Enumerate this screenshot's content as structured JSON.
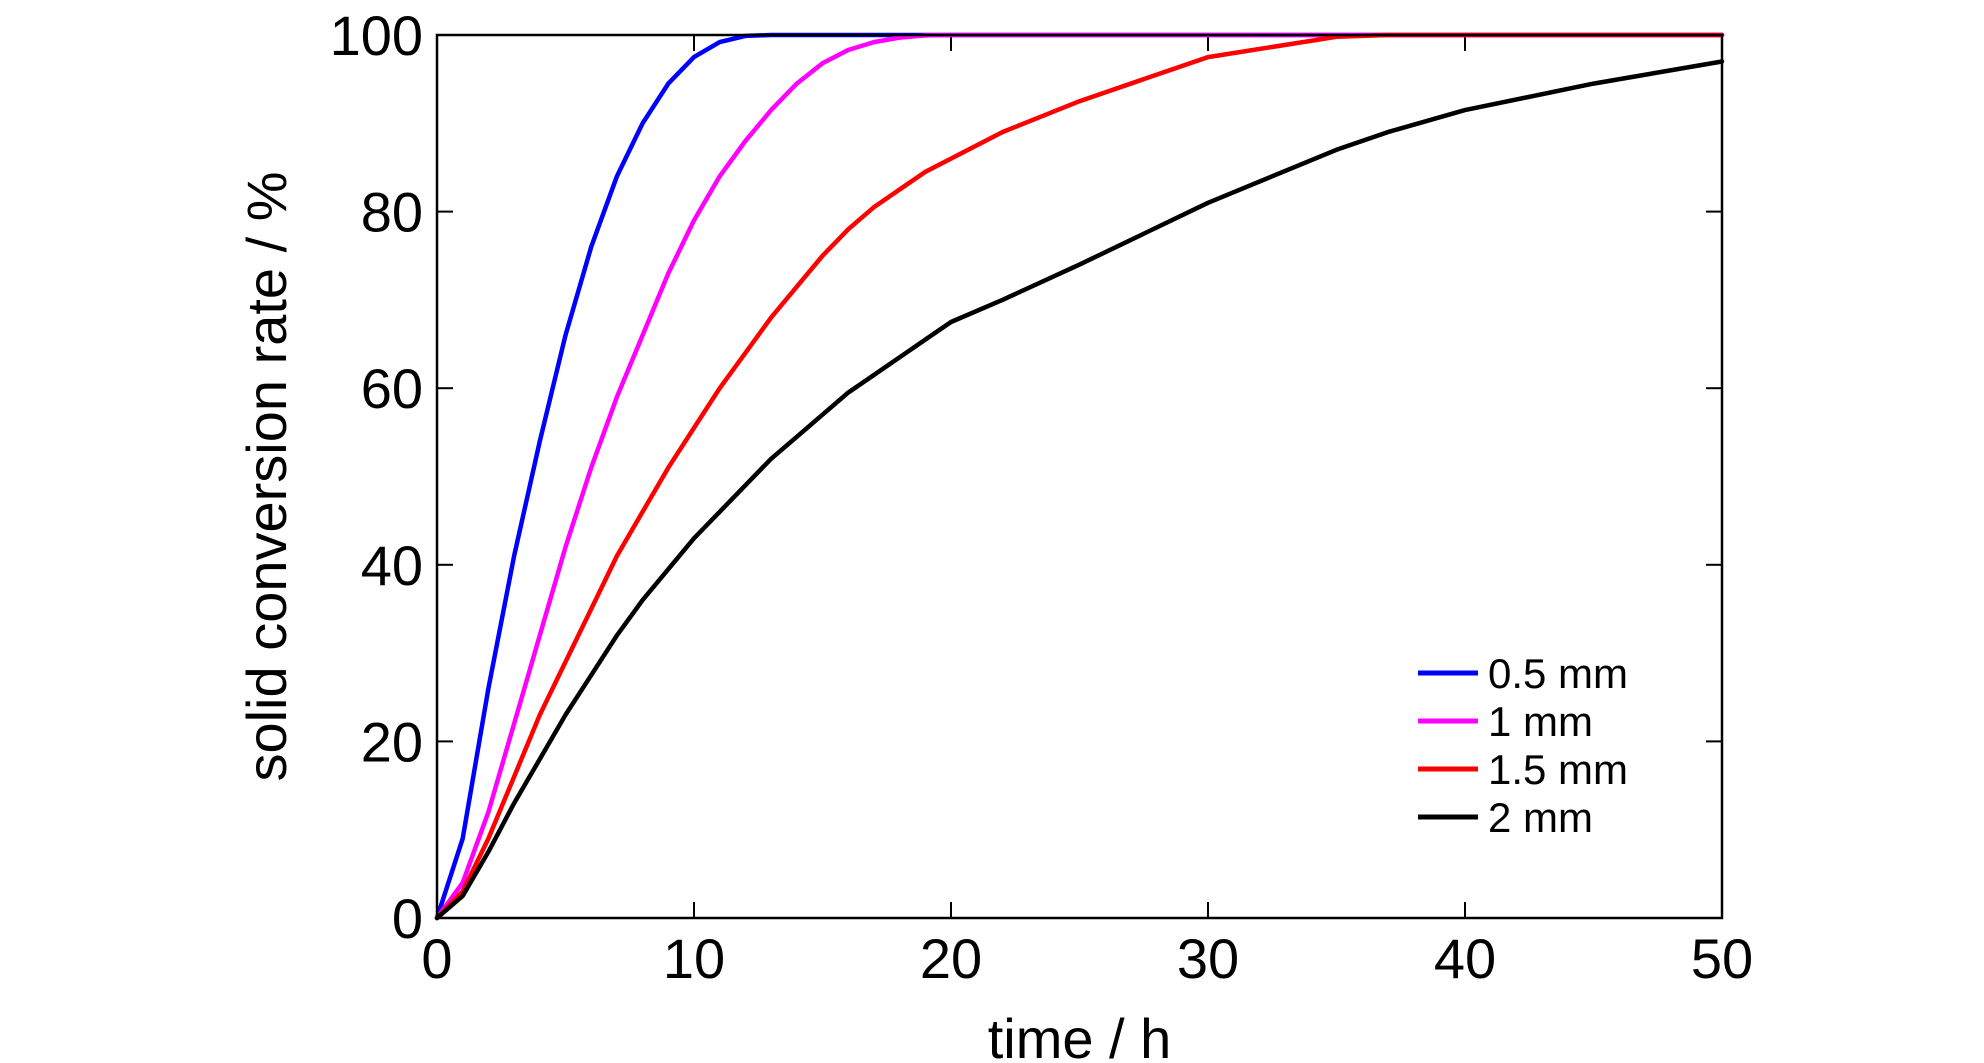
{
  "chart_data": {
    "type": "line",
    "title": "",
    "xlabel": "time / h",
    "ylabel": "solid conversion rate / %",
    "xlim": [
      0,
      50
    ],
    "ylim": [
      0,
      100
    ],
    "xticks": [
      0,
      10,
      20,
      30,
      40,
      50
    ],
    "yticks": [
      0,
      20,
      40,
      60,
      80,
      100
    ],
    "grid": false,
    "legend_position": "bottom-right",
    "x": [
      0,
      1,
      2,
      3,
      4,
      5,
      6,
      7,
      8,
      9,
      10,
      11,
      12,
      13,
      14,
      15,
      16,
      17,
      18,
      19,
      20,
      22,
      25,
      30,
      35,
      37,
      40,
      45,
      50
    ],
    "series": [
      {
        "name": "0.5 mm",
        "color": "#0000ff",
        "values": [
          0,
          9,
          26,
          41,
          54,
          66,
          76,
          84,
          90,
          94.5,
          97.5,
          99.2,
          99.9,
          100,
          100,
          100,
          100,
          100,
          100,
          100,
          100,
          100,
          100,
          100,
          100,
          100,
          100,
          100,
          100
        ]
      },
      {
        "name": "1 mm",
        "color": "#ff00ff",
        "values": [
          0,
          4,
          12,
          22,
          32,
          42,
          51,
          59,
          66,
          73,
          79,
          84,
          88,
          91.5,
          94.5,
          96.8,
          98.3,
          99.2,
          99.7,
          99.95,
          100,
          100,
          100,
          100,
          100,
          100,
          100,
          100,
          100
        ]
      },
      {
        "name": "1.5 mm",
        "color": "#ff0000",
        "values": [
          0,
          3,
          9,
          16,
          23,
          29,
          35,
          41,
          46,
          51,
          55.5,
          60,
          64,
          68,
          71.5,
          75,
          78,
          80.5,
          82.5,
          84.5,
          86,
          89,
          92.5,
          97.5,
          99.8,
          100,
          100,
          100,
          100
        ]
      },
      {
        "name": "2 mm",
        "color": "#000000",
        "values": [
          0,
          2.5,
          7.5,
          13,
          18,
          23,
          27.5,
          32,
          36,
          39.5,
          43,
          46,
          49,
          52,
          54.5,
          57,
          59.5,
          61.5,
          63.5,
          65.5,
          67.5,
          70,
          74,
          81,
          87,
          89,
          91.5,
          94.5,
          97
        ]
      }
    ]
  }
}
